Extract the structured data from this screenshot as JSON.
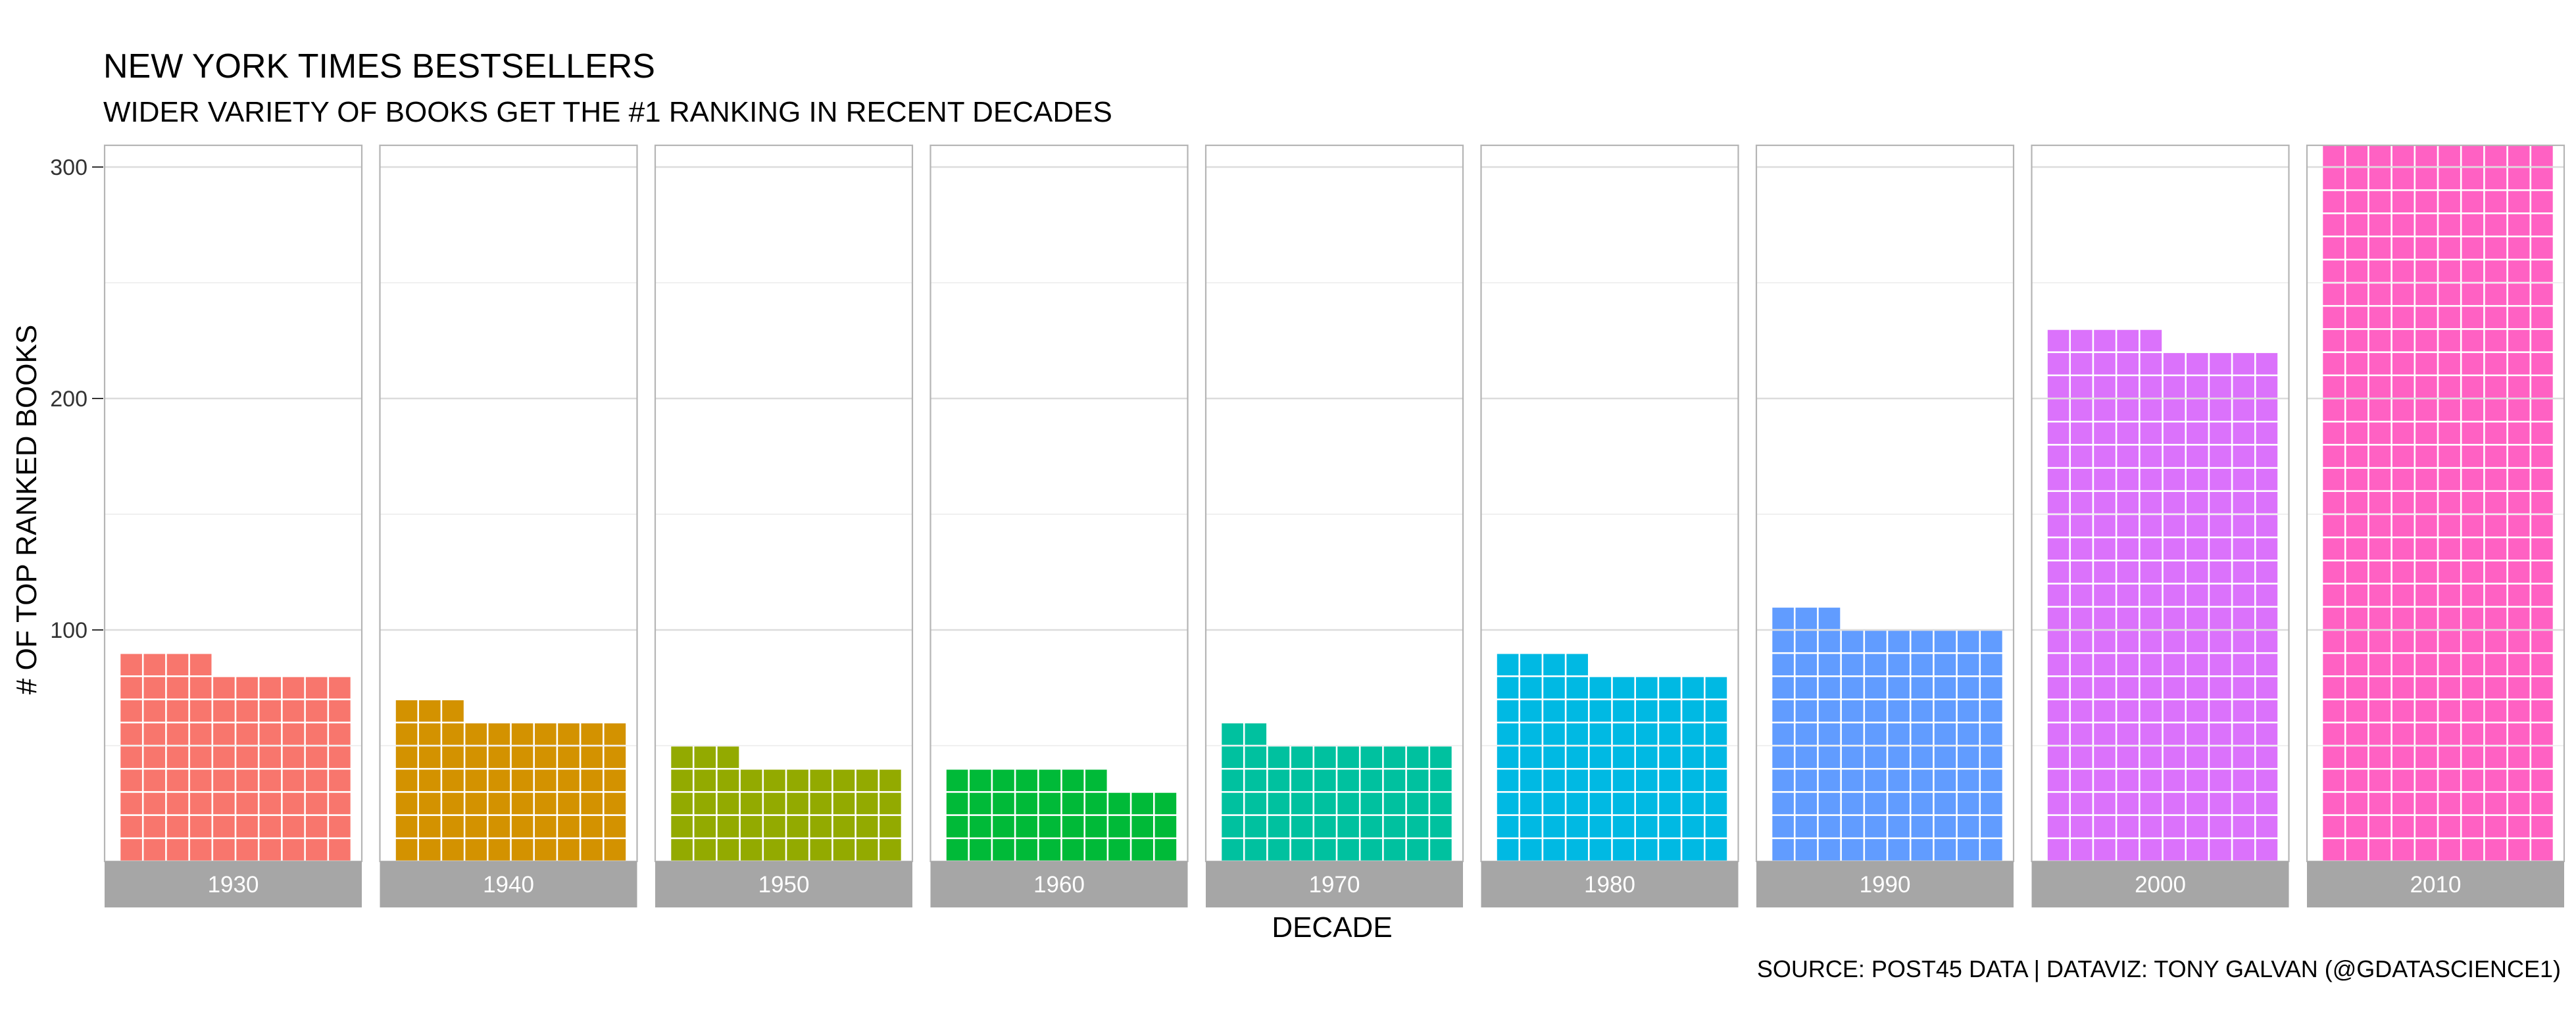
{
  "title": "NEW YORK TIMES BESTSELLERS",
  "subtitle": "WIDER VARIETY OF BOOKS GET THE #1 RANKING IN RECENT DECADES",
  "caption": "SOURCE: POST45 DATA  |  DATAVIZ: TONY GALVAN (@GDATASCIENCE1)",
  "chart_data": {
    "type": "bar",
    "subtype": "waffle-faceted",
    "title": "NEW YORK TIMES BESTSELLERS",
    "subtitle": "WIDER VARIETY OF BOOKS GET THE #1 RANKING IN RECENT DECADES",
    "xlabel": "DECADE",
    "ylabel": "# OF TOP RANKED BOOKS",
    "ylim": [
      0,
      310
    ],
    "yticks": [
      100,
      200,
      300
    ],
    "grid": true,
    "categories": [
      "1930",
      "1940",
      "1950",
      "1960",
      "1970",
      "1980",
      "1990",
      "2000",
      "2010"
    ],
    "values": [
      84,
      63,
      43,
      37,
      52,
      84,
      103,
      225,
      330
    ],
    "colors": [
      "#F8766D",
      "#D39200",
      "#93AA00",
      "#00BA38",
      "#00C19F",
      "#00B9E3",
      "#619CFF",
      "#DB72FB",
      "#FF61C3"
    ],
    "tiles_per_row": 10,
    "units_per_tile": 1
  }
}
